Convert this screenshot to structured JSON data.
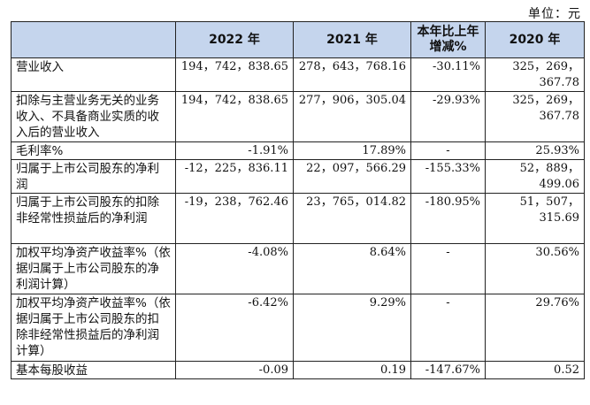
{
  "unit_label": "单位：元",
  "headers": [
    "",
    "2022 年",
    "2021 年",
    "本年比上年增减%",
    "2020 年"
  ],
  "rows": [
    {
      "label": "营业收入",
      "v2022": "194，742，838.65",
      "v2021": "278，643，768.16",
      "change": "-30.11%",
      "v2020": "325，269，367.78"
    },
    {
      "label": "扣除与主营业务无关的业务收入、不具备商业实质的收入后的营业收入",
      "v2022": "194，742，838.65",
      "v2021": "277，906，305.04",
      "change": "-29.93%",
      "v2020": "325，269，367.78"
    },
    {
      "label": "毛利率%",
      "v2022": "-1.91%",
      "v2021": "17.89%",
      "change": "-",
      "v2020": "25.93%"
    },
    {
      "label": "归属于上市公司股东的净利润",
      "v2022": "-12，225，836.11",
      "v2021": "22，097，566.29",
      "change": "-155.33%",
      "v2020": "52，889，499.06"
    },
    {
      "label": "归属于上市公司股东的扣除非经常性损益后的净利润",
      "v2022": "-19，238，762.46",
      "v2021": "23，765，014.82",
      "change": "-180.95%",
      "v2020": "51，507，315.69"
    },
    {
      "label": "加权平均净资产收益率%（依据归属于上市公司股东的净利润计算）",
      "v2022": "-4.08%",
      "v2021": "8.64%",
      "change": "-",
      "v2020": "30.56%"
    },
    {
      "label": "加权平均净资产收益率%（依据归属于上市公司股东的扣除非经常性损益后的净利润计算）",
      "v2022": "-6.42%",
      "v2021": "9.29%",
      "change": "-",
      "v2020": "29.76%"
    },
    {
      "label": "基本每股收益",
      "v2022": "-0.09",
      "v2021": "0.19",
      "change": "-147.67%",
      "v2020": "0.52"
    }
  ]
}
